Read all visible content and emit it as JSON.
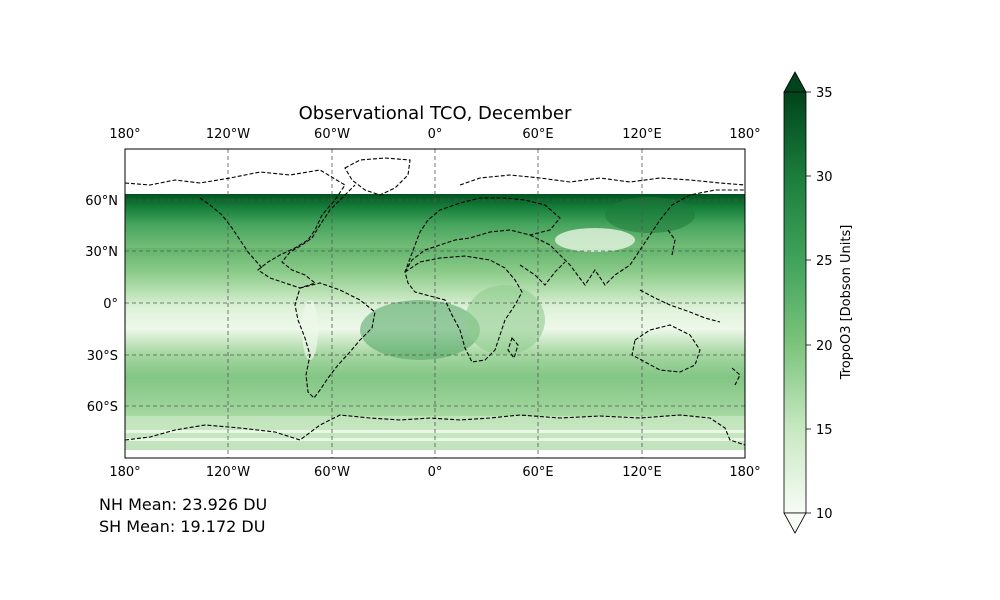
{
  "title": "Observational TCO, December",
  "map": {
    "lon_ticks": [
      "180°",
      "120°W",
      "60°W",
      "0°",
      "60°E",
      "120°E",
      "180°"
    ],
    "lat_ticks": [
      "60°N",
      "30°N",
      "0°",
      "30°S",
      "60°S"
    ],
    "colormap": "Greens",
    "coastline_style": "dashed",
    "gridline_style": "dashed"
  },
  "colorbar": {
    "label": "TropoO3 [Dobson Units]",
    "ticks": [
      "35",
      "30",
      "25",
      "20",
      "15",
      "10"
    ],
    "vmin": 10,
    "vmax": 35,
    "extend": "both"
  },
  "stats": {
    "nh_mean": "NH Mean: 23.926 DU",
    "sh_mean": "SH Mean: 19.172 DU"
  }
}
